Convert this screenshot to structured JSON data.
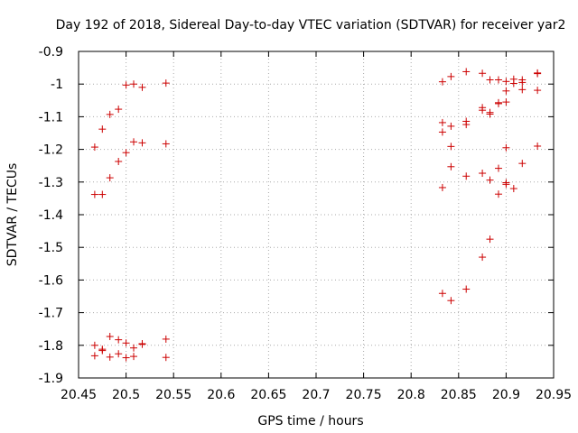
{
  "chart_data": {
    "type": "scatter",
    "title": "Day 192 of 2018, Sidereal Day-to-day VTEC variation (SDTVAR) for receiver yar2",
    "xlabel": "GPS time / hours",
    "ylabel": "SDTVAR / TECUs",
    "xlim": [
      20.45,
      20.95
    ],
    "ylim": [
      -1.9,
      -0.9
    ],
    "xticks": [
      "20.45",
      "20.5",
      "20.55",
      "20.6",
      "20.65",
      "20.7",
      "20.75",
      "20.8",
      "20.85",
      "20.9",
      "20.95"
    ],
    "yticks": [
      "-0.9",
      "-1",
      "-1.1",
      "-1.2",
      "-1.3",
      "-1.4",
      "-1.5",
      "-1.6",
      "-1.7",
      "-1.8",
      "-1.9"
    ],
    "grid": true,
    "marker": "+",
    "color": "#cc0000",
    "series": [
      {
        "name": "SDTVAR",
        "points": [
          [
            20.467,
            -1.193
          ],
          [
            20.467,
            -1.338
          ],
          [
            20.467,
            -1.8
          ],
          [
            20.467,
            -1.832
          ],
          [
            20.475,
            -1.138
          ],
          [
            20.475,
            -1.338
          ],
          [
            20.475,
            -1.816
          ],
          [
            20.475,
            -1.812
          ],
          [
            20.483,
            -1.093
          ],
          [
            20.483,
            -1.287
          ],
          [
            20.483,
            -1.773
          ],
          [
            20.483,
            -1.836
          ],
          [
            20.492,
            -1.077
          ],
          [
            20.492,
            -1.237
          ],
          [
            20.492,
            -1.783
          ],
          [
            20.492,
            -1.826
          ],
          [
            20.5,
            -1.003
          ],
          [
            20.5,
            -1.21
          ],
          [
            20.5,
            -1.793
          ],
          [
            20.5,
            -1.838
          ],
          [
            20.508,
            -1.0
          ],
          [
            20.508,
            -1.177
          ],
          [
            20.508,
            -1.808
          ],
          [
            20.508,
            -1.834
          ],
          [
            20.517,
            -1.01
          ],
          [
            20.517,
            -1.18
          ],
          [
            20.517,
            -1.797
          ],
          [
            20.517,
            -1.795
          ],
          [
            20.542,
            -0.997
          ],
          [
            20.542,
            -1.183
          ],
          [
            20.542,
            -1.781
          ],
          [
            20.542,
            -1.837
          ],
          [
            20.833,
            -0.993
          ],
          [
            20.833,
            -1.118
          ],
          [
            20.833,
            -1.147
          ],
          [
            20.833,
            -1.317
          ],
          [
            20.833,
            -1.641
          ],
          [
            20.842,
            -0.977
          ],
          [
            20.842,
            -1.129
          ],
          [
            20.842,
            -1.191
          ],
          [
            20.842,
            -1.253
          ],
          [
            20.842,
            -1.663
          ],
          [
            20.858,
            -0.962
          ],
          [
            20.858,
            -1.114
          ],
          [
            20.858,
            -1.124
          ],
          [
            20.858,
            -1.282
          ],
          [
            20.858,
            -1.628
          ],
          [
            20.875,
            -0.967
          ],
          [
            20.875,
            -1.072
          ],
          [
            20.875,
            -1.08
          ],
          [
            20.875,
            -1.273
          ],
          [
            20.875,
            -1.53
          ],
          [
            20.883,
            -0.987
          ],
          [
            20.883,
            -1.087
          ],
          [
            20.883,
            -1.092
          ],
          [
            20.883,
            -1.294
          ],
          [
            20.883,
            -1.475
          ],
          [
            20.892,
            -0.987
          ],
          [
            20.892,
            -1.057
          ],
          [
            20.892,
            -1.06
          ],
          [
            20.892,
            -1.258
          ],
          [
            20.892,
            -1.337
          ],
          [
            20.9,
            -0.992
          ],
          [
            20.9,
            -1.021
          ],
          [
            20.9,
            -1.055
          ],
          [
            20.9,
            -1.195
          ],
          [
            20.9,
            -1.302
          ],
          [
            20.9,
            -1.307
          ],
          [
            20.908,
            -0.985
          ],
          [
            20.908,
            -0.998
          ],
          [
            20.908,
            -1.32
          ],
          [
            20.917,
            -0.987
          ],
          [
            20.917,
            -0.995
          ],
          [
            20.917,
            -1.017
          ],
          [
            20.917,
            -1.243
          ],
          [
            20.933,
            -0.966
          ],
          [
            20.933,
            -0.968
          ],
          [
            20.933,
            -1.019
          ],
          [
            20.933,
            -1.19
          ]
        ]
      }
    ]
  }
}
